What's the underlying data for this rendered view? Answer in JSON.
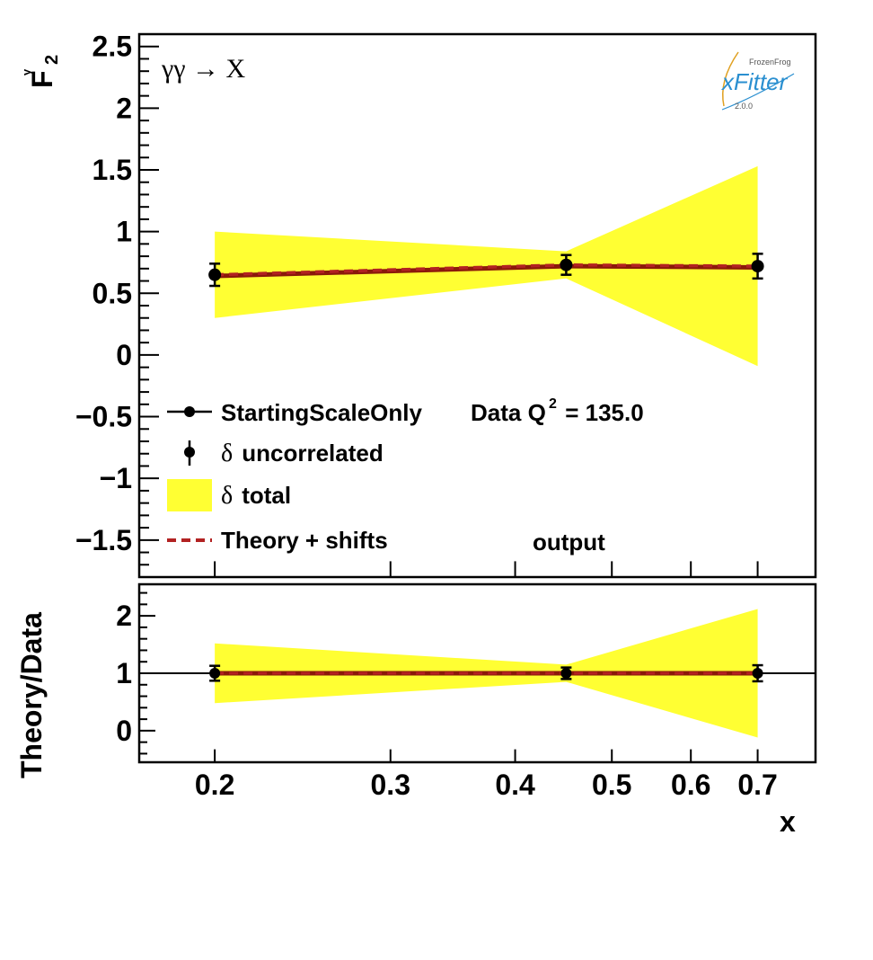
{
  "chart_data": [
    {
      "panel": "main",
      "type": "line",
      "ylabel_main": "F",
      "ylabel_sup": "γ",
      "ylabel_sub": "2",
      "ylim": [
        -1.8,
        2.6
      ],
      "yticks": [
        -1.5,
        -1,
        -0.5,
        0,
        0.5,
        1,
        1.5,
        2,
        2.5
      ],
      "ytick_labels": [
        "−1.5",
        "−1",
        "−0.5",
        "0",
        "0.5",
        "1",
        "1.5",
        "2",
        "2.5"
      ],
      "process_label": "γγ  → X",
      "data_points": {
        "x": [
          0.2,
          0.45,
          0.7
        ],
        "y": [
          0.65,
          0.73,
          0.72
        ],
        "err_uncorrelated": [
          0.09,
          0.08,
          0.1
        ]
      },
      "total_band": {
        "x": [
          0.2,
          0.45,
          0.7
        ],
        "lower": [
          0.3,
          0.62,
          -0.09
        ],
        "upper": [
          1.0,
          0.84,
          1.53
        ]
      },
      "theory": {
        "x": [
          0.2,
          0.45,
          0.7
        ],
        "y": [
          0.64,
          0.72,
          0.71
        ]
      },
      "theory_shifts": {
        "x": [
          0.2,
          0.45,
          0.7
        ],
        "y": [
          0.65,
          0.73,
          0.72
        ]
      },
      "legend": {
        "series_label": "StartingScaleOnly",
        "data_label": "Data Q",
        "data_label_sup": "2",
        "data_label_value": " = 135.0",
        "uncorr_symbol": "δ",
        "uncorr_label": " uncorrelated",
        "total_symbol": "δ",
        "total_label": " total",
        "shifts_label": "Theory + shifts",
        "output_label": "output"
      },
      "colors": {
        "band": "#ffff33",
        "theory": "#8b1a0a",
        "shifts": "#b22222",
        "data": "#000000"
      }
    },
    {
      "panel": "ratio",
      "type": "line",
      "ylabel": "Theory/Data",
      "ylim": [
        -0.55,
        2.55
      ],
      "yticks": [
        0,
        1,
        2
      ],
      "ytick_labels": [
        "0",
        "1",
        "2"
      ],
      "data_points": {
        "x": [
          0.2,
          0.45,
          0.7
        ],
        "y": [
          1.0,
          1.0,
          1.0
        ],
        "err": [
          0.13,
          0.1,
          0.14
        ]
      },
      "total_band": {
        "x": [
          0.2,
          0.45,
          0.7
        ],
        "lower": [
          0.48,
          0.85,
          -0.12
        ],
        "upper": [
          1.52,
          1.15,
          2.12
        ]
      },
      "theory": {
        "x": [
          0.2,
          0.45,
          0.7
        ],
        "y": [
          1.0,
          1.0,
          1.0
        ]
      },
      "reference_line": 1.0
    }
  ],
  "x_axis": {
    "label": "x",
    "scale": "log",
    "xlim": [
      0.168,
      0.8
    ],
    "ticks": [
      0.2,
      0.3,
      0.4,
      0.5,
      0.6,
      0.7
    ],
    "tick_labels": [
      "0.2",
      "0.3",
      "0.4",
      "0.5",
      "0.6",
      "0.7"
    ]
  },
  "logo": {
    "top": "FrozenFrog",
    "main": "xFitter",
    "version": "2.0.0"
  }
}
